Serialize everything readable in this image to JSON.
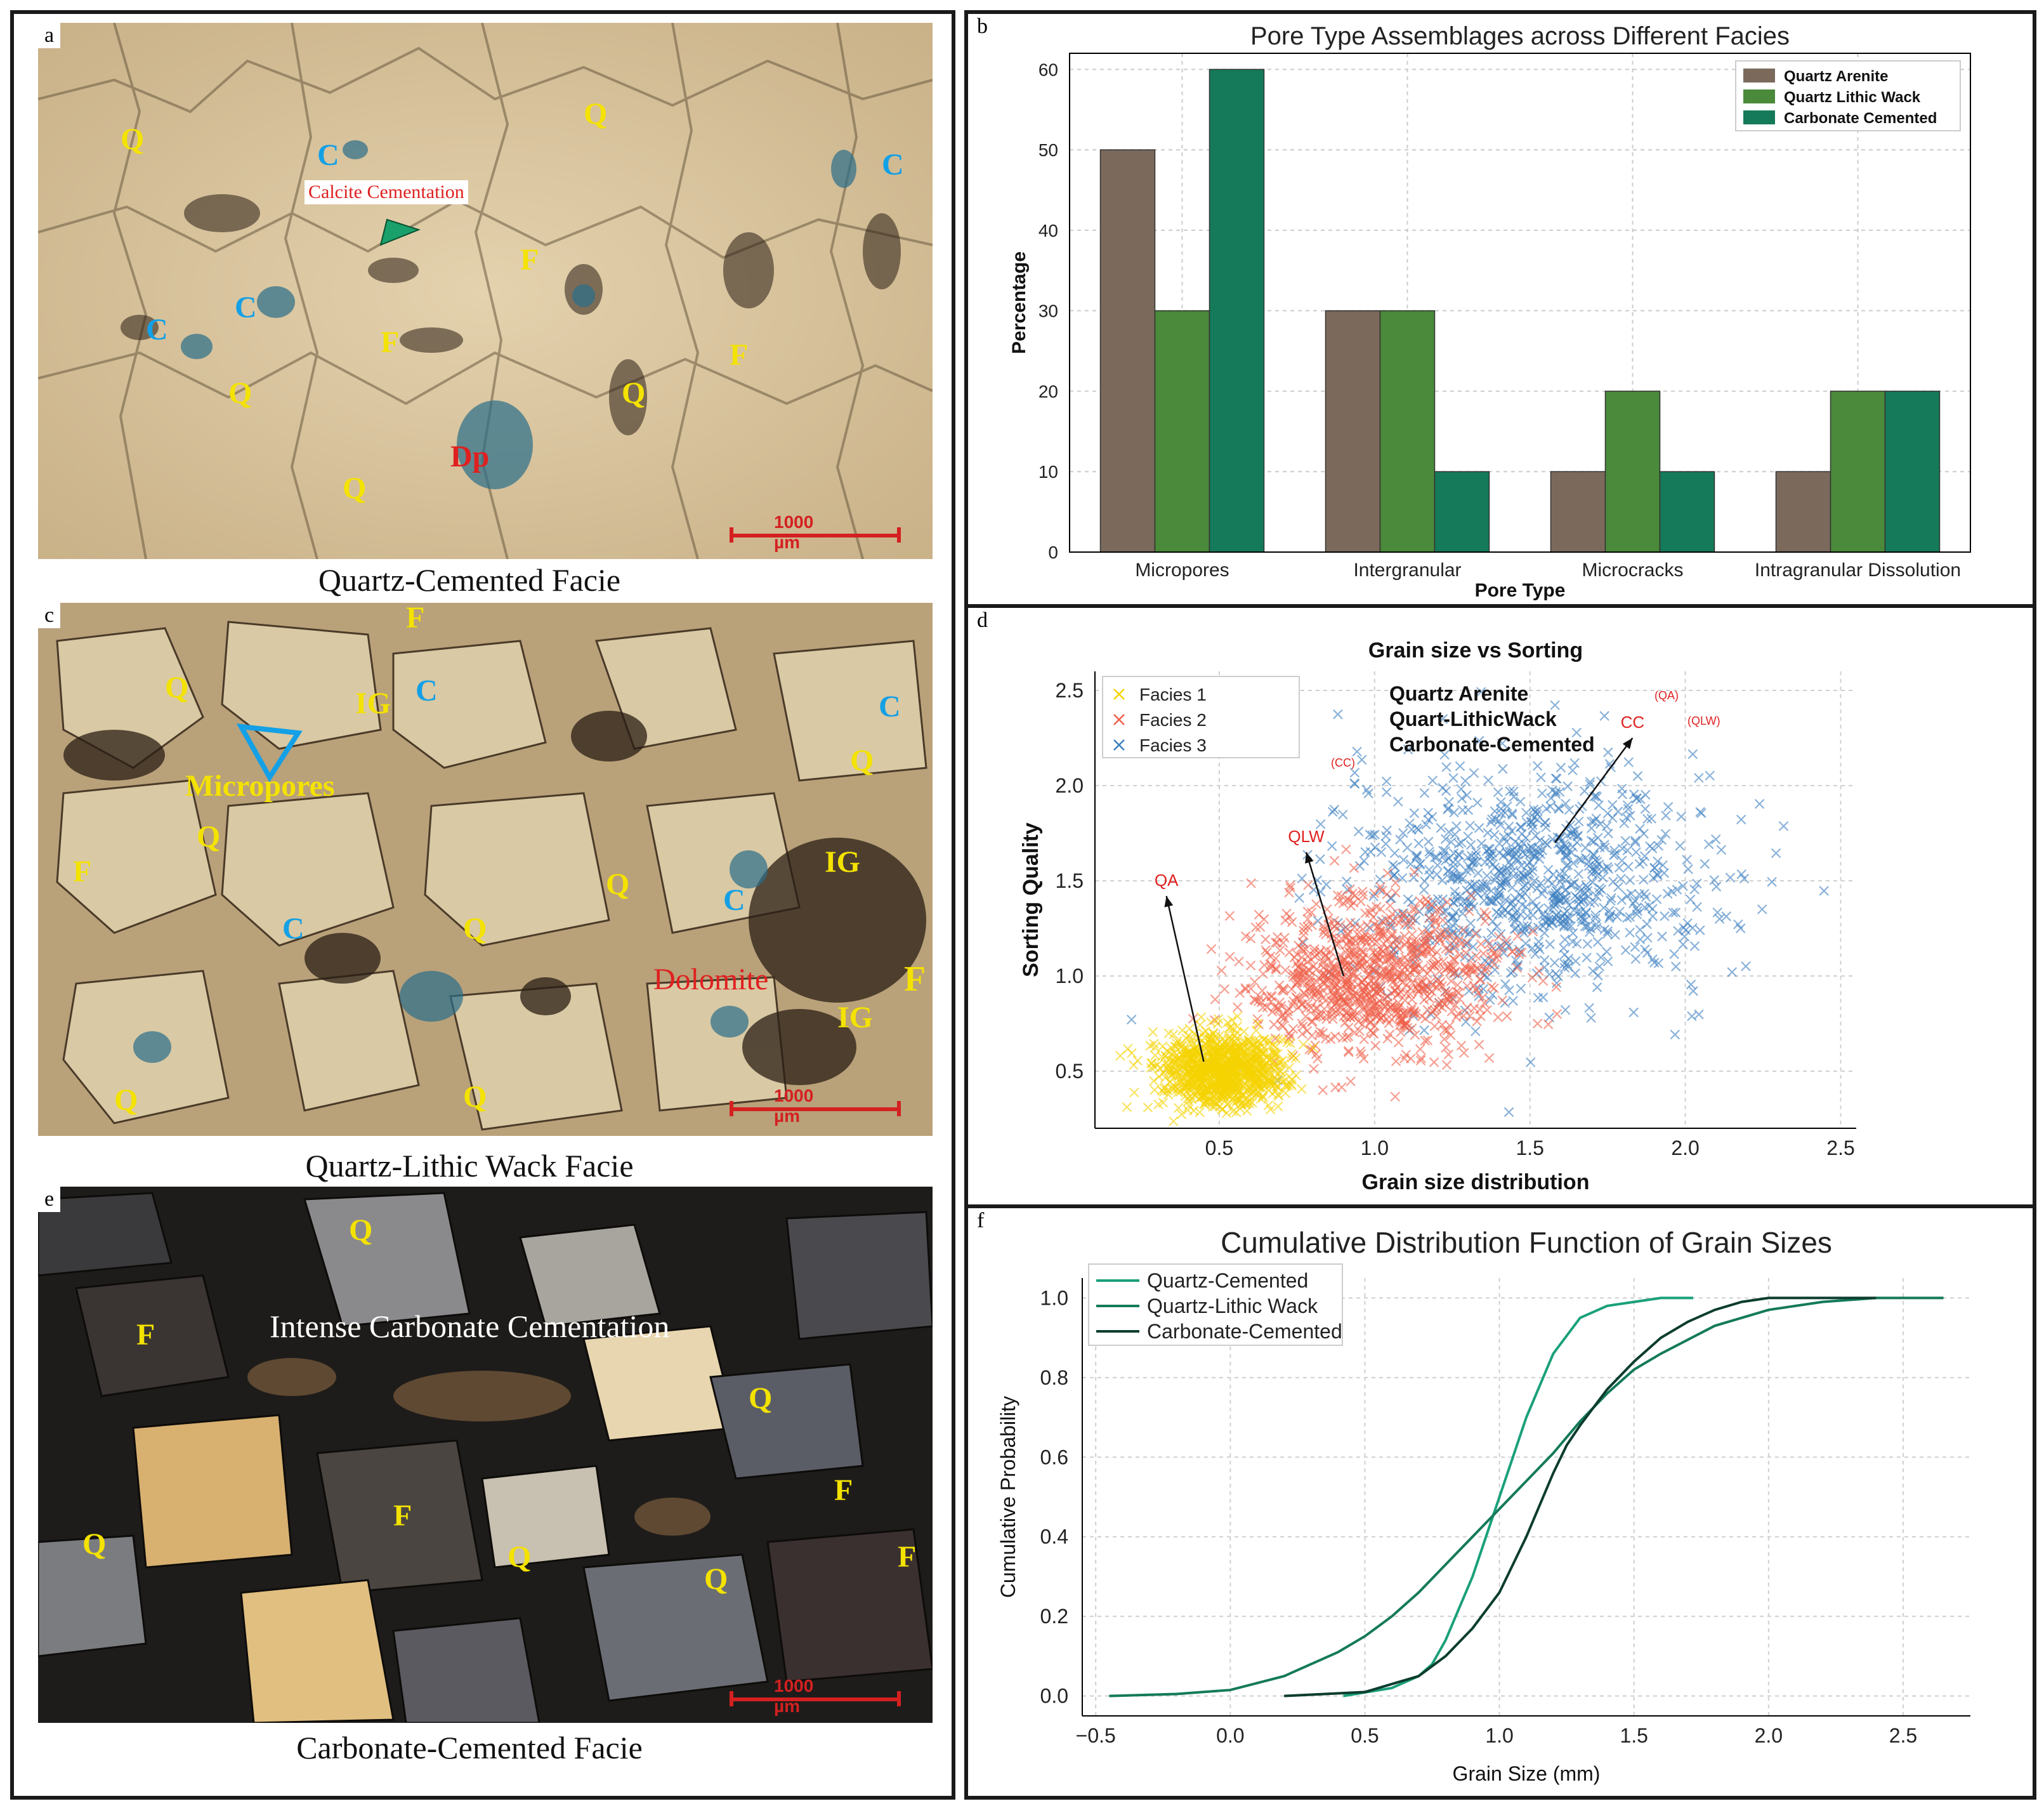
{
  "panels": {
    "a": {
      "label": "a",
      "caption": "Quartz-Cemented Facie",
      "scale": "1000 µm",
      "annotations": [
        "Q",
        "Q",
        "Q",
        "Q",
        "Q",
        "Q",
        "C",
        "C",
        "C",
        "C",
        "F",
        "F",
        "F",
        "Dp",
        "Calcite Cementation"
      ]
    },
    "c": {
      "label": "c",
      "caption": "Quartz-Lithic Wack  Facie",
      "scale": "1000 µm",
      "annotations": [
        "F",
        "Q",
        "IG",
        "C",
        "C",
        "Micropores",
        "Q",
        "Q",
        "F",
        "IG",
        "Q",
        "C",
        "C",
        "Q",
        "Dolomite",
        "F",
        "IG",
        "Q",
        "Q"
      ]
    },
    "e": {
      "label": "e",
      "caption": "Carbonate-Cemented  Facie",
      "scale": "1000 µm",
      "annotations": [
        "Q",
        "F",
        "Intense Carbonate Cementation",
        "Q",
        "F",
        "F",
        "Q",
        "Q",
        "Q",
        "F"
      ]
    },
    "b": {
      "label": "b"
    },
    "d": {
      "label": "d"
    },
    "f": {
      "label": "f"
    }
  },
  "colors": {
    "quartz_arenite": "#7b6a5c",
    "quartz_lithic": "#4a8a3a",
    "carbonate": "#157a5a",
    "facies1": "#f5d300",
    "facies2": "#f0604a",
    "facies3": "#3d7fc0",
    "arrow_label": "#e02020"
  },
  "chart_data": [
    {
      "panel": "b",
      "type": "bar",
      "title": "Pore Type Assemblages across Different Facies",
      "xlabel": "Pore Type",
      "ylabel": "Percentage",
      "categories": [
        "Micropores",
        "Intergranular",
        "Microcracks",
        "Intragranular Dissolution"
      ],
      "series": [
        {
          "name": "Quartz Arenite",
          "values": [
            50,
            30,
            10,
            10
          ]
        },
        {
          "name": "Quartz Lithic Wack",
          "values": [
            30,
            30,
            20,
            20
          ]
        },
        {
          "name": "Carbonate Cemented",
          "values": [
            60,
            10,
            10,
            20
          ]
        }
      ],
      "ylim": [
        0,
        62
      ],
      "yticks": [
        0,
        10,
        20,
        30,
        40,
        50,
        60
      ],
      "grid": true,
      "legend": "top-right"
    },
    {
      "panel": "d",
      "type": "scatter",
      "title": "Grain size vs Sorting",
      "xlabel": "Grain size distribution",
      "ylabel": "Sorting Quality",
      "xlim": [
        0.1,
        2.55
      ],
      "ylim": [
        0.2,
        2.6
      ],
      "xticks": [
        0.5,
        1.0,
        1.5,
        2.0,
        2.5
      ],
      "yticks": [
        0.5,
        1.0,
        1.5,
        2.0,
        2.5
      ],
      "grid": true,
      "legend": "top-left",
      "series": [
        {
          "name": "Facies 1",
          "legend_extra": "Quartz Arenite",
          "abbr": "QA",
          "marker": "x",
          "center": [
            0.5,
            0.5
          ],
          "spread": [
            0.1,
            0.1
          ],
          "n": 900
        },
        {
          "name": "Facies 2",
          "legend_extra": "Quart-LithicWack",
          "abbr": "QLW",
          "marker": "x",
          "center": [
            1.0,
            1.0
          ],
          "spread": [
            0.2,
            0.2
          ],
          "n": 900
        },
        {
          "name": "Facies 3",
          "legend_extra": "Carbonate-Cemented",
          "abbr": "CC",
          "marker": "x",
          "center": [
            1.5,
            1.5
          ],
          "spread": [
            0.3,
            0.3
          ],
          "n": 900
        }
      ],
      "annotations": [
        {
          "text": "QA",
          "from": [
            0.45,
            0.55
          ],
          "to": [
            0.33,
            1.42
          ]
        },
        {
          "text": "QLW",
          "from": [
            0.9,
            1.0
          ],
          "to": [
            0.78,
            1.65
          ]
        },
        {
          "text": "CC",
          "from": [
            1.58,
            1.7
          ],
          "to": [
            1.83,
            2.25
          ]
        }
      ]
    },
    {
      "panel": "f",
      "type": "line",
      "title": "Cumulative Distribution Function of Grain Sizes",
      "xlabel": "Grain Size (mm)",
      "ylabel": "Cumulative Probability",
      "xlim": [
        -0.55,
        2.75
      ],
      "ylim": [
        -0.05,
        1.05
      ],
      "xticks": [
        -0.5,
        0.0,
        0.5,
        1.0,
        1.5,
        2.0,
        2.5
      ],
      "yticks": [
        0.0,
        0.2,
        0.4,
        0.6,
        0.8,
        1.0
      ],
      "grid": true,
      "legend": "top-left",
      "series": [
        {
          "name": "Quartz-Cemented",
          "color": "#1aa07a",
          "x": [
            0.42,
            0.6,
            0.7,
            0.75,
            0.8,
            0.85,
            0.9,
            0.95,
            1.0,
            1.05,
            1.1,
            1.15,
            1.2,
            1.3,
            1.4,
            1.5,
            1.6,
            1.72
          ],
          "y": [
            0.0,
            0.02,
            0.05,
            0.08,
            0.14,
            0.22,
            0.3,
            0.4,
            0.5,
            0.6,
            0.7,
            0.78,
            0.86,
            0.95,
            0.98,
            0.99,
            1.0,
            1.0
          ]
        },
        {
          "name": "Quartz-Lithic Wack",
          "color": "#147a5a",
          "x": [
            -0.45,
            -0.2,
            0.0,
            0.2,
            0.4,
            0.5,
            0.6,
            0.7,
            0.8,
            0.9,
            1.0,
            1.1,
            1.2,
            1.3,
            1.4,
            1.5,
            1.6,
            1.8,
            2.0,
            2.2,
            2.4,
            2.65
          ],
          "y": [
            0.0,
            0.005,
            0.015,
            0.05,
            0.11,
            0.15,
            0.2,
            0.26,
            0.33,
            0.4,
            0.47,
            0.54,
            0.61,
            0.69,
            0.76,
            0.82,
            0.86,
            0.93,
            0.97,
            0.99,
            1.0,
            1.0
          ]
        },
        {
          "name": "Carbonate-Cemented",
          "color": "#0c3d2e",
          "x": [
            0.2,
            0.5,
            0.6,
            0.7,
            0.8,
            0.9,
            1.0,
            1.1,
            1.15,
            1.2,
            1.25,
            1.3,
            1.4,
            1.5,
            1.6,
            1.7,
            1.8,
            1.9,
            2.0,
            2.2,
            2.4
          ],
          "y": [
            0.0,
            0.01,
            0.03,
            0.05,
            0.1,
            0.17,
            0.26,
            0.4,
            0.48,
            0.56,
            0.63,
            0.68,
            0.77,
            0.84,
            0.9,
            0.94,
            0.97,
            0.99,
            1.0,
            1.0,
            1.0
          ]
        }
      ]
    }
  ]
}
